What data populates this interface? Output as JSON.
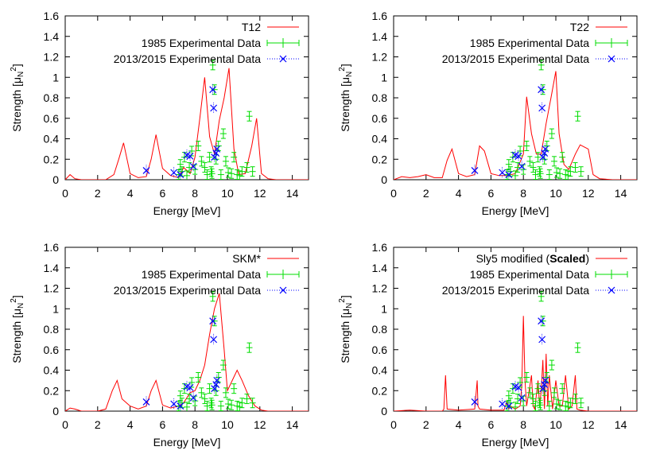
{
  "chart_data": [
    {
      "type": "line",
      "xlabel": "Energy [MeV]",
      "ylabel": "Strength [μ",
      "ylabel_sub": "N",
      "ylabel_sup": "2",
      "ylabel_end": "]",
      "xlim": [
        0,
        15
      ],
      "ylim": [
        0,
        1.6
      ],
      "xticks": [
        0,
        2,
        4,
        6,
        8,
        10,
        12,
        14
      ],
      "yticks": [
        "0",
        "0.2",
        "0.4",
        "0.6",
        "0.8",
        "1",
        "1.2",
        "1.4",
        "1.6"
      ],
      "legend": "top-right",
      "legend_entries": [
        {
          "name": "T12",
          "bold_suffix": ""
        },
        {
          "name": "1985 Experimental Data"
        },
        {
          "name": "2013/2015 Experimental Data"
        }
      ],
      "theory": {
        "color": "#ff0000",
        "x": [
          0,
          0.3,
          0.6,
          1,
          1.5,
          2,
          2.5,
          3,
          3.3,
          3.6,
          4.0,
          4.5,
          5,
          5.3,
          5.6,
          6.0,
          6.5,
          7,
          7.3,
          7.7,
          8,
          8.3,
          8.6,
          8.9,
          9.2,
          9.5,
          9.8,
          10.1,
          10.4,
          10.7,
          11.1,
          11.5,
          11.8,
          12.1,
          12.5,
          13,
          14,
          15
        ],
        "y": [
          0,
          0.05,
          0.01,
          0,
          0,
          0,
          0,
          0.05,
          0.2,
          0.36,
          0.06,
          0.02,
          0.03,
          0.2,
          0.44,
          0.11,
          0.04,
          0.02,
          0.12,
          0.06,
          0.22,
          0.6,
          1.0,
          0.42,
          0.25,
          0.58,
          0.8,
          1.09,
          0.3,
          0.05,
          0.06,
          0.33,
          0.6,
          0.06,
          0.01,
          0,
          0,
          0
        ]
      },
      "exp1985": {
        "color": "#00dd00",
        "x": [
          7.0,
          7.1,
          7.2,
          7.35,
          7.5,
          7.65,
          7.8,
          8.0,
          8.2,
          8.4,
          8.6,
          8.75,
          8.9,
          9.0,
          9.05,
          9.1,
          9.2,
          9.3,
          9.45,
          9.6,
          9.75,
          9.9,
          10.05,
          10.25,
          10.4,
          10.6,
          10.75,
          10.9,
          11.2,
          11.35,
          11.55
        ],
        "y": [
          0.05,
          0.15,
          0.08,
          0.22,
          0.04,
          0.12,
          0.28,
          0.1,
          0.33,
          0.18,
          0.12,
          0.05,
          0.22,
          0.08,
          0.06,
          1.12,
          0.88,
          0.2,
          0.33,
          0.05,
          0.45,
          0.18,
          0.07,
          0.06,
          0.22,
          0.05,
          0.04,
          0.08,
          0.12,
          0.62,
          0.08
        ]
      },
      "exp2013": {
        "color": "#0000ff",
        "x": [
          5.0,
          6.7,
          7.1,
          7.5,
          7.7,
          7.9,
          9.1,
          9.15,
          9.2,
          9.3,
          9.35
        ],
        "y": [
          0.09,
          0.07,
          0.05,
          0.24,
          0.23,
          0.13,
          0.88,
          0.7,
          0.22,
          0.26,
          0.3
        ]
      }
    },
    {
      "type": "line",
      "xlabel": "Energy [MeV]",
      "ylabel": "Strength [μ",
      "ylabel_sub": "N",
      "ylabel_sup": "2",
      "ylabel_end": "]",
      "xlim": [
        0,
        15
      ],
      "ylim": [
        0,
        1.6
      ],
      "xticks": [
        0,
        2,
        4,
        6,
        8,
        10,
        12,
        14
      ],
      "yticks": [
        "0",
        "0.2",
        "0.4",
        "0.6",
        "0.8",
        "1",
        "1.2",
        "1.4",
        "1.6"
      ],
      "legend": "top-right",
      "legend_entries": [
        {
          "name": "T22",
          "bold_suffix": ""
        },
        {
          "name": "1985 Experimental Data"
        },
        {
          "name": "2013/2015 Experimental Data"
        }
      ],
      "theory": {
        "color": "#ff0000",
        "x": [
          0,
          0.5,
          1,
          1.5,
          2,
          2.5,
          3,
          3.3,
          3.6,
          4,
          4.5,
          5,
          5.3,
          5.6,
          6,
          6.5,
          7,
          7.5,
          8,
          8.2,
          8.5,
          8.8,
          9.1,
          9.4,
          9.7,
          10.0,
          10.2,
          10.5,
          10.8,
          11.2,
          11.5,
          12,
          12.3,
          12.7,
          13.5,
          14,
          15
        ],
        "y": [
          0,
          0.03,
          0.02,
          0.03,
          0.05,
          0.02,
          0.02,
          0.19,
          0.3,
          0.06,
          0.03,
          0.05,
          0.33,
          0.28,
          0.06,
          0.04,
          0.04,
          0.06,
          0.25,
          0.81,
          0.45,
          0.25,
          0.25,
          0.55,
          0.8,
          1.06,
          0.45,
          0.15,
          0.1,
          0.25,
          0.34,
          0.3,
          0.05,
          0.01,
          0,
          0,
          0
        ]
      },
      "exp1985": {
        "color": "#00dd00",
        "x": [
          7.0,
          7.1,
          7.2,
          7.35,
          7.5,
          7.65,
          7.8,
          8.0,
          8.2,
          8.4,
          8.6,
          8.75,
          8.9,
          9.0,
          9.05,
          9.1,
          9.2,
          9.3,
          9.45,
          9.6,
          9.75,
          9.9,
          10.05,
          10.25,
          10.4,
          10.6,
          10.75,
          10.9,
          11.2,
          11.35,
          11.55
        ],
        "y": [
          0.05,
          0.15,
          0.08,
          0.22,
          0.04,
          0.12,
          0.28,
          0.1,
          0.33,
          0.18,
          0.12,
          0.05,
          0.22,
          0.08,
          0.06,
          1.12,
          0.88,
          0.2,
          0.33,
          0.05,
          0.45,
          0.18,
          0.07,
          0.06,
          0.22,
          0.05,
          0.04,
          0.08,
          0.12,
          0.62,
          0.08
        ]
      },
      "exp2013": {
        "color": "#0000ff",
        "x": [
          5.0,
          6.7,
          7.1,
          7.5,
          7.7,
          7.9,
          9.1,
          9.15,
          9.2,
          9.3,
          9.35
        ],
        "y": [
          0.09,
          0.07,
          0.05,
          0.24,
          0.23,
          0.13,
          0.88,
          0.7,
          0.22,
          0.26,
          0.3
        ]
      }
    },
    {
      "type": "line",
      "xlabel": "Energy [MeV]",
      "ylabel": "Strength [μ",
      "ylabel_sub": "N",
      "ylabel_sup": "2",
      "ylabel_end": "]",
      "xlim": [
        0,
        15
      ],
      "ylim": [
        0,
        1.6
      ],
      "xticks": [
        0,
        2,
        4,
        6,
        8,
        10,
        12,
        14
      ],
      "yticks": [
        "0",
        "0.2",
        "0.4",
        "0.6",
        "0.8",
        "1",
        "1.2",
        "1.4",
        "1.6"
      ],
      "legend": "top-right",
      "legend_entries": [
        {
          "name": "SKM*",
          "bold_suffix": ""
        },
        {
          "name": "1985 Experimental Data"
        },
        {
          "name": "2013/2015 Experimental Data"
        }
      ],
      "theory": {
        "color": "#ff0000",
        "x": [
          0,
          0.3,
          0.6,
          1,
          1.5,
          2,
          2.5,
          2.9,
          3.2,
          3.5,
          4,
          4.5,
          5,
          5.3,
          5.6,
          6,
          6.5,
          7,
          7.3,
          7.7,
          8,
          8.3,
          8.6,
          8.9,
          9.2,
          9.5,
          9.8,
          10.0,
          10.3,
          10.6,
          10.9,
          11.3,
          11.7,
          12.1,
          12.5,
          13,
          14,
          15
        ],
        "y": [
          0,
          0.03,
          0.02,
          0,
          0,
          0,
          0.02,
          0.2,
          0.3,
          0.12,
          0.05,
          0.02,
          0.05,
          0.2,
          0.3,
          0.06,
          0.03,
          0.05,
          0.08,
          0.18,
          0.2,
          0.3,
          0.45,
          0.75,
          1.0,
          1.15,
          0.6,
          0.2,
          0.3,
          0.4,
          0.3,
          0.15,
          0.05,
          0.01,
          0,
          0,
          0,
          0
        ]
      },
      "exp1985": {
        "color": "#00dd00",
        "x": [
          7.0,
          7.1,
          7.2,
          7.35,
          7.5,
          7.65,
          7.8,
          8.0,
          8.2,
          8.4,
          8.6,
          8.75,
          8.9,
          9.0,
          9.05,
          9.1,
          9.2,
          9.3,
          9.45,
          9.6,
          9.75,
          9.9,
          10.05,
          10.25,
          10.4,
          10.6,
          10.75,
          10.9,
          11.2,
          11.35,
          11.55
        ],
        "y": [
          0.05,
          0.15,
          0.08,
          0.22,
          0.04,
          0.12,
          0.28,
          0.1,
          0.33,
          0.18,
          0.12,
          0.05,
          0.22,
          0.08,
          0.06,
          1.12,
          0.88,
          0.2,
          0.33,
          0.05,
          0.45,
          0.18,
          0.07,
          0.06,
          0.22,
          0.05,
          0.04,
          0.08,
          0.12,
          0.62,
          0.08
        ]
      },
      "exp2013": {
        "color": "#0000ff",
        "x": [
          5.0,
          6.7,
          7.1,
          7.5,
          7.7,
          7.9,
          9.1,
          9.15,
          9.2,
          9.3,
          9.35
        ],
        "y": [
          0.09,
          0.07,
          0.05,
          0.24,
          0.23,
          0.13,
          0.88,
          0.7,
          0.22,
          0.26,
          0.3
        ]
      }
    },
    {
      "type": "line",
      "xlabel": "Energy [MeV]",
      "ylabel": "Strength [μ",
      "ylabel_sub": "N",
      "ylabel_sup": "2",
      "ylabel_end": "]",
      "xlim": [
        0,
        15
      ],
      "ylim": [
        0,
        1.6
      ],
      "xticks": [
        0,
        2,
        4,
        6,
        8,
        10,
        12,
        14
      ],
      "yticks": [
        "0",
        "0.2",
        "0.4",
        "0.6",
        "0.8",
        "1",
        "1.2",
        "1.4",
        "1.6"
      ],
      "legend": "top-right",
      "legend_entries": [
        {
          "name": "Sly5 modified (",
          "bold_suffix": "Scaled",
          "tail": ")"
        },
        {
          "name": "1985 Experimental Data"
        },
        {
          "name": "2013/2015 Experimental Data"
        }
      ],
      "theory": {
        "color": "#ff0000",
        "x": [
          0,
          1,
          2,
          3,
          3.1,
          3.2,
          3.3,
          4,
          5.0,
          5.15,
          5.2,
          5.3,
          6.0,
          6.8,
          7.0,
          7.1,
          7.2,
          7.5,
          7.8,
          7.9,
          8.0,
          8.1,
          8.2,
          8.5,
          8.6,
          8.7,
          8.9,
          9.0,
          9.1,
          9.2,
          9.3,
          9.4,
          9.5,
          9.6,
          9.8,
          10.0,
          10.2,
          10.4,
          10.6,
          10.8,
          11.0,
          11.2,
          11.3,
          11.5,
          12,
          13,
          14,
          15
        ],
        "y": [
          0,
          0.01,
          0,
          0,
          0.02,
          0.35,
          0.02,
          0.01,
          0.02,
          0.3,
          0.05,
          0.02,
          0.01,
          0.01,
          0.1,
          0.02,
          0.05,
          0.02,
          0.05,
          0.25,
          0.93,
          0.3,
          0.05,
          0.35,
          0.05,
          0.02,
          0.3,
          0.05,
          0.2,
          0.5,
          0.02,
          0.56,
          0.05,
          0.35,
          0.02,
          0.3,
          0.05,
          0.05,
          0.35,
          0.02,
          0.05,
          0.35,
          0.02,
          0.01,
          0,
          0,
          0,
          0
        ]
      },
      "exp1985": {
        "color": "#00dd00",
        "x": [
          7.0,
          7.1,
          7.2,
          7.35,
          7.5,
          7.65,
          7.8,
          8.0,
          8.2,
          8.4,
          8.6,
          8.75,
          8.9,
          9.0,
          9.05,
          9.1,
          9.2,
          9.3,
          9.45,
          9.6,
          9.75,
          9.9,
          10.05,
          10.25,
          10.4,
          10.6,
          10.75,
          10.9,
          11.2,
          11.35,
          11.55
        ],
        "y": [
          0.05,
          0.15,
          0.08,
          0.22,
          0.04,
          0.12,
          0.28,
          0.1,
          0.33,
          0.18,
          0.12,
          0.05,
          0.22,
          0.08,
          0.06,
          1.12,
          0.88,
          0.2,
          0.33,
          0.05,
          0.45,
          0.18,
          0.07,
          0.06,
          0.22,
          0.05,
          0.04,
          0.08,
          0.12,
          0.62,
          0.08
        ]
      },
      "exp2013": {
        "color": "#0000ff",
        "x": [
          5.0,
          6.7,
          7.1,
          7.5,
          7.7,
          7.9,
          9.1,
          9.15,
          9.2,
          9.3,
          9.35
        ],
        "y": [
          0.09,
          0.07,
          0.05,
          0.24,
          0.23,
          0.13,
          0.88,
          0.7,
          0.22,
          0.26,
          0.3
        ]
      }
    }
  ]
}
